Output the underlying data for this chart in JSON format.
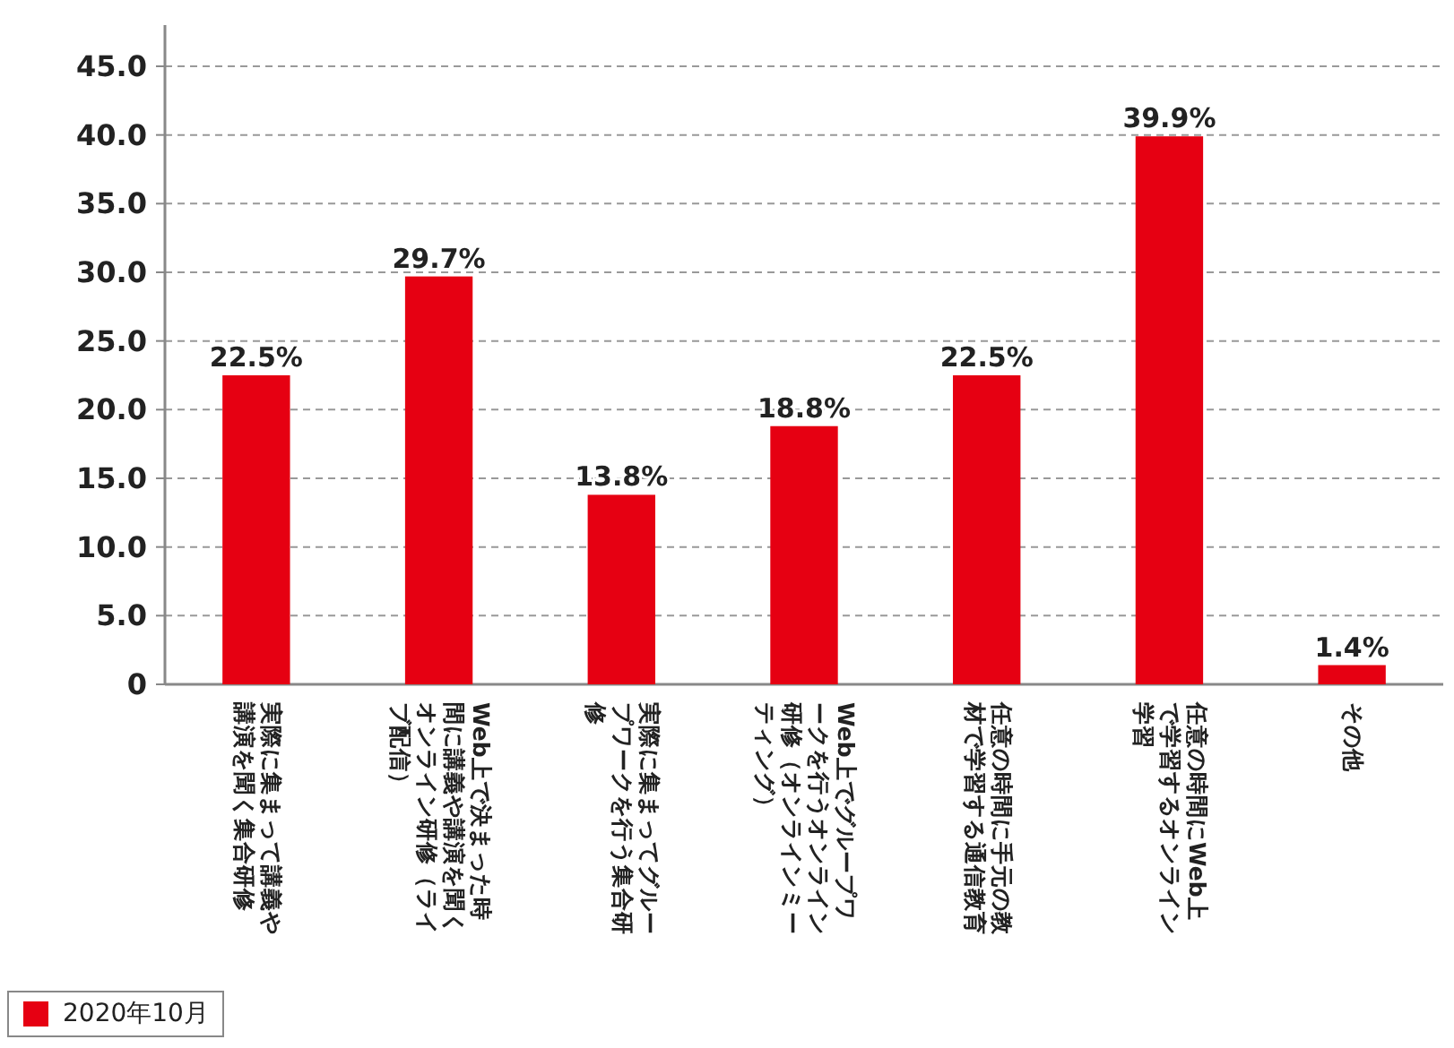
{
  "chart_data": {
    "type": "bar",
    "categories": [
      "実際に集まって講義や講演を聞く集合研修",
      "Web上で決まった時間に講義や講演を聞くオンライン研修（ライブ配信）",
      "実際に集まってグループワークを行う集合研修",
      "Web上でグループワークを行うオンライン研修（オンラインミーティング）",
      "任意の時間に手元の教材で学習する通信教育",
      "任意の時間にWeb上で学習するオンライン学習",
      "その他"
    ],
    "series": [
      {
        "name": "2020年10月",
        "color": "#e60012",
        "values": [
          22.5,
          29.7,
          13.8,
          18.8,
          22.5,
          39.9,
          1.4
        ],
        "value_labels": [
          "22.5%",
          "29.7%",
          "13.8%",
          "18.8%",
          "22.5%",
          "39.9%",
          "1.4%"
        ]
      }
    ],
    "ylim": [
      0,
      48
    ],
    "yticks": [
      {
        "value": 0,
        "label": "0"
      },
      {
        "value": 5,
        "label": "5.0"
      },
      {
        "value": 10,
        "label": "10.0"
      },
      {
        "value": 15,
        "label": "15.0"
      },
      {
        "value": 20,
        "label": "20.0"
      },
      {
        "value": 25,
        "label": "25.0"
      },
      {
        "value": 30,
        "label": "30.0"
      },
      {
        "value": 35,
        "label": "35.0"
      },
      {
        "value": 40,
        "label": "40.0"
      },
      {
        "value": 45,
        "label": "45.0"
      }
    ],
    "grid": "y",
    "legend": "bottom left"
  }
}
